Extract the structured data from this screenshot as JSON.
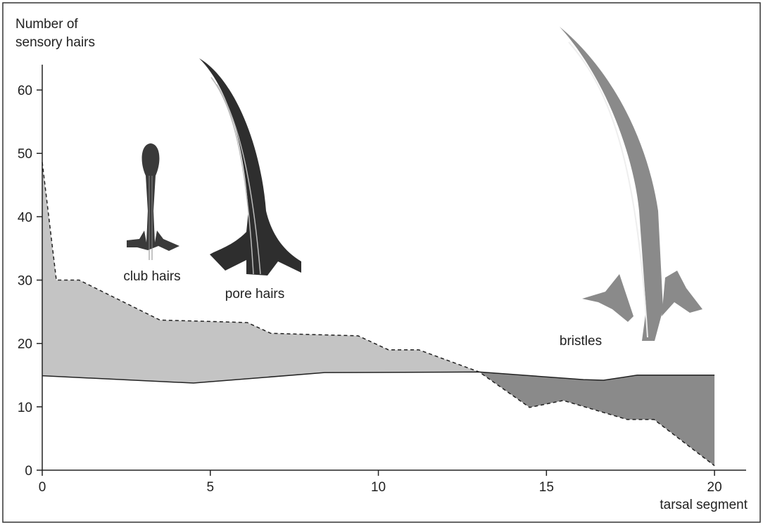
{
  "chart_data": {
    "type": "area-between",
    "ylabel": [
      "Number of",
      "sensory hairs"
    ],
    "xlabel": "tarsal segment",
    "xlim": [
      0,
      20.94
    ],
    "ylim": [
      0,
      64
    ],
    "xticks": [
      0,
      5,
      10,
      15,
      20
    ],
    "yticks": [
      0,
      10,
      20,
      30,
      40,
      50,
      60
    ],
    "series": [
      {
        "style": "dashed",
        "color": "#222222",
        "x": [
          0,
          0.42,
          1.1,
          3.5,
          6.1,
          6.8,
          9.4,
          10.3,
          11.2,
          13,
          14.5,
          15.5,
          17.4,
          18.2,
          20
        ],
        "values": [
          48.6,
          30,
          30,
          23.7,
          23.3,
          21.6,
          21.2,
          19,
          19,
          15.5,
          9.9,
          11,
          8,
          8,
          0.7
        ]
      },
      {
        "style": "solid",
        "color": "#222222",
        "x": [
          0,
          4.5,
          8.4,
          13,
          16.1,
          16.7,
          17.7,
          20
        ],
        "values": [
          14.9,
          13.75,
          15.4,
          15.5,
          14.3,
          14.2,
          15,
          15
        ]
      }
    ],
    "fill_above_color": "#c4c4c4",
    "fill_below_color": "#8a8a8a",
    "annotations": [
      "club hairs",
      "pore hairs",
      "bristles"
    ]
  }
}
